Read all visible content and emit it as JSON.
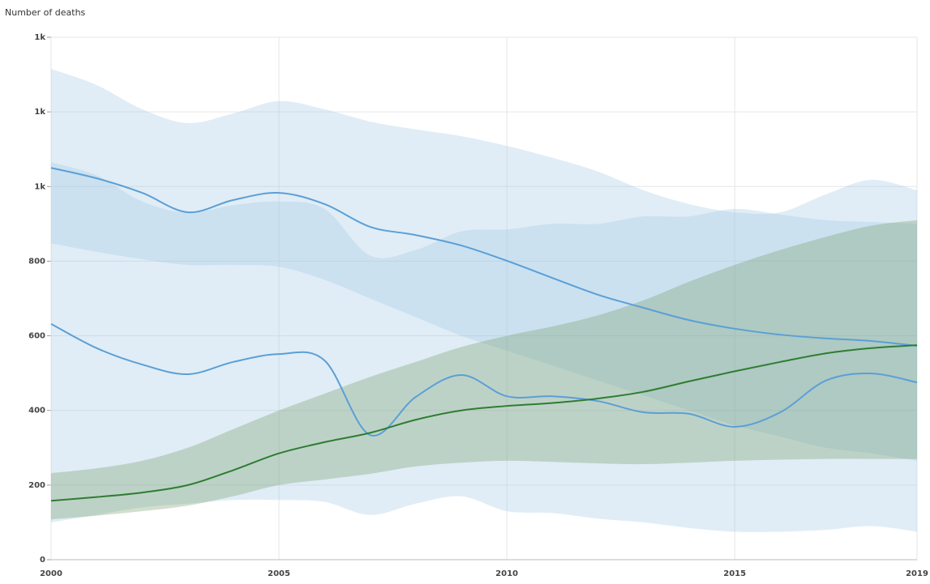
{
  "chart_data": {
    "type": "line",
    "y_label": "Number of deaths",
    "x": [
      2000,
      2001,
      2002,
      2003,
      2004,
      2005,
      2006,
      2007,
      2008,
      2009,
      2010,
      2011,
      2012,
      2013,
      2014,
      2015,
      2016,
      2017,
      2018,
      2019
    ],
    "xlim": [
      2000,
      2019
    ],
    "xticks": [
      2000,
      2005,
      2010,
      2015,
      2019
    ],
    "ylim": [
      0,
      1400
    ],
    "yticks": [
      0,
      200,
      400,
      600,
      800,
      {
        "value": 1000,
        "label": "1k"
      },
      {
        "value": 1200,
        "label": "1k"
      },
      {
        "value": 1400,
        "label": "1k"
      }
    ],
    "grid": true,
    "series": [
      {
        "color": "#5b9fd6",
        "band_color": "rgba(160,200,228,0.32)",
        "values": [
          1050,
          1022,
          983,
          931,
          964,
          983,
          953,
          892,
          870,
          842,
          801,
          755,
          710,
          675,
          642,
          619,
          603,
          593,
          586,
          573
        ],
        "upper": [
          1315,
          1272,
          1207,
          1170,
          1196,
          1229,
          1207,
          1174,
          1153,
          1135,
          1109,
          1077,
          1040,
          990,
          953,
          931,
          931,
          979,
          1018,
          990
        ],
        "lower": [
          848,
          825,
          805,
          790,
          790,
          785,
          750,
          700,
          650,
          600,
          560,
          520,
          480,
          440,
          400,
          360,
          330,
          300,
          285,
          265
        ]
      },
      {
        "color": "#5b9fd6",
        "band_color": "rgba(160,200,228,0.32)",
        "values": [
          632,
          567,
          523,
          497,
          530,
          551,
          534,
          334,
          436,
          495,
          438,
          438,
          425,
          395,
          391,
          356,
          395,
          480,
          499,
          475
        ],
        "upper": [
          1065,
          1030,
          960,
          930,
          950,
          960,
          940,
          815,
          830,
          880,
          885,
          900,
          900,
          920,
          920,
          940,
          925,
          910,
          905,
          900
        ],
        "lower": [
          100,
          120,
          140,
          150,
          160,
          160,
          155,
          120,
          150,
          170,
          130,
          125,
          110,
          100,
          85,
          75,
          75,
          80,
          90,
          75
        ]
      },
      {
        "color": "#2e7d32",
        "band_color": "rgba(110,150,90,0.30)",
        "values": [
          158,
          168,
          180,
          200,
          240,
          285,
          315,
          340,
          375,
          400,
          412,
          420,
          432,
          450,
          478,
          505,
          530,
          553,
          567,
          575
        ],
        "upper": [
          232,
          245,
          265,
          300,
          350,
          400,
          445,
          490,
          530,
          570,
          600,
          625,
          655,
          695,
          745,
          790,
          830,
          865,
          895,
          910
        ],
        "lower": [
          108,
          118,
          130,
          145,
          170,
          200,
          215,
          230,
          250,
          260,
          265,
          262,
          258,
          256,
          260,
          265,
          268,
          270,
          270,
          270
        ]
      }
    ]
  }
}
